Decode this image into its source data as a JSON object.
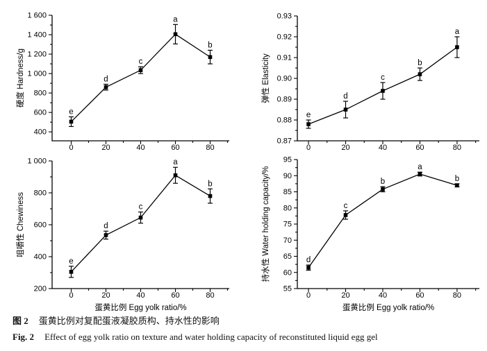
{
  "figure": {
    "caption_zh_label": "图 2",
    "caption_zh_text": "蛋黄比例对复配蛋液凝胶质构、持水性的影响",
    "caption_en_label": "Fig. 2",
    "caption_en_text": "Effect of egg yolk ratio on texture and water holding capacity of reconstituted liquid egg gel",
    "line_color": "#000000",
    "marker": "filled-square"
  },
  "chart_data": [
    {
      "id": "hardness",
      "type": "line",
      "title": "",
      "x": [
        0,
        20,
        40,
        60,
        80
      ],
      "values": [
        505,
        860,
        1035,
        1405,
        1170
      ],
      "errors": [
        50,
        30,
        35,
        100,
        70
      ],
      "point_labels": [
        "e",
        "d",
        "c",
        "a",
        "b"
      ],
      "ylabel": "硬度 Hardness/g",
      "xlabel": "",
      "xlim": [
        -11,
        91
      ],
      "ylim": [
        308,
        1600
      ],
      "xticks": [
        0,
        20,
        40,
        60,
        80
      ],
      "yticks": [
        400,
        600,
        800,
        1000,
        1200,
        1400,
        1600
      ],
      "ytick_labels": [
        "400",
        "600",
        "800",
        "1 000",
        "1 200",
        "1 400",
        "1 600"
      ],
      "minor_ticks": true,
      "grid": false,
      "legend": "none"
    },
    {
      "id": "elasticity",
      "type": "line",
      "title": "",
      "x": [
        0,
        20,
        40,
        60,
        80
      ],
      "values": [
        0.878,
        0.885,
        0.894,
        0.902,
        0.915
      ],
      "errors": [
        0.002,
        0.004,
        0.004,
        0.003,
        0.005
      ],
      "point_labels": [
        "e",
        "d",
        "c",
        "b",
        "a"
      ],
      "ylabel": "弹性 Elasticity",
      "xlabel": "",
      "xlim": [
        -6,
        92
      ],
      "ylim": [
        0.87,
        0.93
      ],
      "xticks": [
        0,
        20,
        40,
        60,
        80
      ],
      "yticks": [
        0.87,
        0.88,
        0.89,
        0.9,
        0.91,
        0.92,
        0.93
      ],
      "ytick_labels": [
        "0.87",
        "0.88",
        "0.89",
        "0.90",
        "0.91",
        "0.92",
        "0.93"
      ],
      "minor_ticks": true,
      "grid": false,
      "legend": "none"
    },
    {
      "id": "chewiness",
      "type": "line",
      "title": "",
      "x": [
        0,
        20,
        40,
        60,
        80
      ],
      "values": [
        305,
        535,
        645,
        910,
        780
      ],
      "errors": [
        35,
        25,
        35,
        50,
        45
      ],
      "point_labels": [
        "e",
        "d",
        "c",
        "a",
        "b"
      ],
      "ylabel": "咀嚼性 Chewiness",
      "xlabel": "蛋黄比例 Egg yolk ratio/%",
      "xlim": [
        -11,
        91
      ],
      "ylim": [
        200,
        1000
      ],
      "xticks": [
        0,
        20,
        40,
        60,
        80
      ],
      "yticks": [
        200,
        400,
        600,
        800,
        1000
      ],
      "ytick_labels": [
        "200",
        "400",
        "600",
        "800",
        "1 000"
      ],
      "minor_ticks": true,
      "grid": false,
      "legend": "none"
    },
    {
      "id": "whc",
      "type": "line",
      "title": "",
      "x": [
        0,
        20,
        40,
        60,
        80
      ],
      "values": [
        61.5,
        77.8,
        85.8,
        90.5,
        87.0
      ],
      "errors": [
        0.8,
        1.3,
        0.8,
        0.6,
        0.5
      ],
      "point_labels": [
        "d",
        "c",
        "b",
        "a",
        "b"
      ],
      "ylabel": "持水性 Water holding capacity/%",
      "xlabel": "蛋黄比例 Egg yolk ratio/%",
      "xlim": [
        -6,
        92
      ],
      "ylim": [
        55,
        95
      ],
      "xticks": [
        0,
        20,
        40,
        60,
        80
      ],
      "yticks": [
        55,
        60,
        65,
        70,
        75,
        80,
        85,
        90,
        95
      ],
      "ytick_labels": [
        "55",
        "60",
        "65",
        "70",
        "75",
        "80",
        "85",
        "90",
        "95"
      ],
      "minor_ticks": true,
      "grid": false,
      "legend": "none"
    }
  ]
}
